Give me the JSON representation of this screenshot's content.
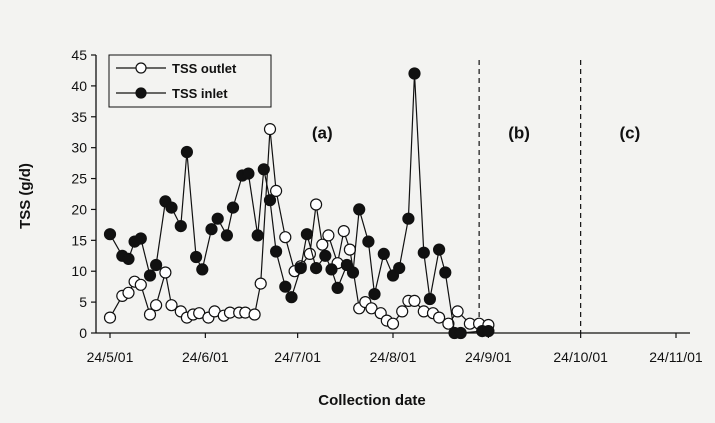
{
  "chart_data": {
    "type": "line",
    "title": "",
    "xlabel": "Collection date",
    "ylabel": "TSS (g/d)",
    "ylim": [
      0,
      45
    ],
    "y_ticks": [
      0,
      5,
      10,
      15,
      20,
      25,
      30,
      35,
      40,
      45
    ],
    "xlim": [
      "2001-05-24",
      "2001-11-24"
    ],
    "x_ticks": [
      "2001-05-24",
      "2001-06-24",
      "2001-07-24",
      "2001-08-24",
      "2001-09-24",
      "2001-10-24",
      "2001-11-24"
    ],
    "x_tick_labels": [
      "24/5/01",
      "24/6/01",
      "24/7/01",
      "24/8/01",
      "24/9/01",
      "24/10/01",
      "24/11/01"
    ],
    "grid": false,
    "legend_position": "top-left",
    "period_dividers": [
      "2001-09-21",
      "2001-10-24"
    ],
    "period_labels": [
      {
        "text": "(a)",
        "date": "2001-08-01",
        "y": 31.5
      },
      {
        "text": "(b)",
        "date": "2001-10-04",
        "y": 31.5
      },
      {
        "text": "(c)",
        "date": "2001-11-09",
        "y": 31.5
      }
    ],
    "series": [
      {
        "name": "TSS outlet",
        "marker": "open-circle",
        "color": "#111111",
        "points": [
          [
            "2001-05-24",
            2.5
          ],
          [
            "2001-05-28",
            6
          ],
          [
            "2001-05-30",
            6.5
          ],
          [
            "2001-06-01",
            8.3
          ],
          [
            "2001-06-03",
            7.8
          ],
          [
            "2001-06-06",
            3
          ],
          [
            "2001-06-08",
            4.5
          ],
          [
            "2001-06-11",
            9.8
          ],
          [
            "2001-06-13",
            4.5
          ],
          [
            "2001-06-16",
            3.5
          ],
          [
            "2001-06-18",
            2.5
          ],
          [
            "2001-06-20",
            3
          ],
          [
            "2001-06-22",
            3.2
          ],
          [
            "2001-06-25",
            2.5
          ],
          [
            "2001-06-27",
            3.5
          ],
          [
            "2001-06-30",
            2.8
          ],
          [
            "2001-07-02",
            3.3
          ],
          [
            "2001-07-05",
            3.3
          ],
          [
            "2001-07-07",
            3.3
          ],
          [
            "2001-07-10",
            3
          ],
          [
            "2001-07-12",
            8
          ],
          [
            "2001-07-15",
            33
          ],
          [
            "2001-07-17",
            23
          ],
          [
            "2001-07-20",
            15.5
          ],
          [
            "2001-07-23",
            10
          ],
          [
            "2001-07-25",
            10.8
          ],
          [
            "2001-07-28",
            12.8
          ],
          [
            "2001-07-30",
            20.8
          ],
          [
            "2001-08-01",
            14.3
          ],
          [
            "2001-08-03",
            15.8
          ],
          [
            "2001-08-06",
            11.3
          ],
          [
            "2001-08-08",
            16.5
          ],
          [
            "2001-08-10",
            13.5
          ],
          [
            "2001-08-13",
            4
          ],
          [
            "2001-08-15",
            5
          ],
          [
            "2001-08-17",
            4
          ],
          [
            "2001-08-20",
            3.2
          ],
          [
            "2001-08-22",
            2
          ],
          [
            "2001-08-24",
            1.5
          ],
          [
            "2001-08-27",
            3.5
          ],
          [
            "2001-08-29",
            5.2
          ],
          [
            "2001-08-31",
            5.2
          ],
          [
            "2001-09-03",
            3.5
          ],
          [
            "2001-09-06",
            3.2
          ],
          [
            "2001-09-08",
            2.5
          ],
          [
            "2001-09-11",
            1.5
          ],
          [
            "2001-09-14",
            3.5
          ],
          [
            "2001-09-18",
            1.5
          ],
          [
            "2001-09-21",
            1.5
          ],
          [
            "2001-09-24",
            1.3
          ]
        ]
      },
      {
        "name": "TSS inlet",
        "marker": "filled-circle",
        "color": "#111111",
        "points": [
          [
            "2001-05-24",
            16
          ],
          [
            "2001-05-28",
            12.5
          ],
          [
            "2001-05-30",
            12
          ],
          [
            "2001-06-01",
            14.8
          ],
          [
            "2001-06-03",
            15.3
          ],
          [
            "2001-06-06",
            9.3
          ],
          [
            "2001-06-08",
            11
          ],
          [
            "2001-06-11",
            21.3
          ],
          [
            "2001-06-13",
            20.3
          ],
          [
            "2001-06-16",
            17.3
          ],
          [
            "2001-06-18",
            29.3
          ],
          [
            "2001-06-21",
            12.3
          ],
          [
            "2001-06-23",
            10.3
          ],
          [
            "2001-06-26",
            16.8
          ],
          [
            "2001-06-28",
            18.5
          ],
          [
            "2001-07-01",
            15.8
          ],
          [
            "2001-07-03",
            20.3
          ],
          [
            "2001-07-06",
            25.5
          ],
          [
            "2001-07-08",
            25.8
          ],
          [
            "2001-07-11",
            15.8
          ],
          [
            "2001-07-13",
            26.5
          ],
          [
            "2001-07-15",
            21.5
          ],
          [
            "2001-07-17",
            13.2
          ],
          [
            "2001-07-20",
            7.5
          ],
          [
            "2001-07-22",
            5.8
          ],
          [
            "2001-07-25",
            10.5
          ],
          [
            "2001-07-27",
            16
          ],
          [
            "2001-07-30",
            10.5
          ],
          [
            "2001-08-02",
            12.5
          ],
          [
            "2001-08-04",
            10.3
          ],
          [
            "2001-08-06",
            7.3
          ],
          [
            "2001-08-09",
            11
          ],
          [
            "2001-08-11",
            9.8
          ],
          [
            "2001-08-13",
            20
          ],
          [
            "2001-08-16",
            14.8
          ],
          [
            "2001-08-18",
            6.3
          ],
          [
            "2001-08-21",
            12.8
          ],
          [
            "2001-08-24",
            9.3
          ],
          [
            "2001-08-26",
            10.5
          ],
          [
            "2001-08-29",
            18.5
          ],
          [
            "2001-08-31",
            42
          ],
          [
            "2001-09-03",
            13
          ],
          [
            "2001-09-05",
            5.5
          ],
          [
            "2001-09-08",
            13.5
          ],
          [
            "2001-09-10",
            9.8
          ],
          [
            "2001-09-13",
            0
          ],
          [
            "2001-09-15",
            0
          ],
          [
            "2001-09-22",
            0.3
          ],
          [
            "2001-09-24",
            0.3
          ]
        ]
      }
    ]
  }
}
